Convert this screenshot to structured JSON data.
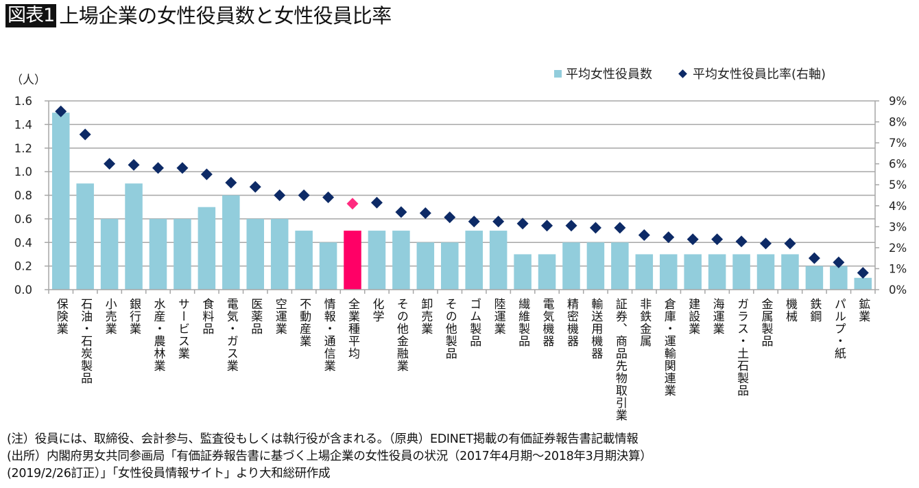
{
  "header": {
    "badge": "図表1",
    "title": "上場企業の女性役員数と女性役員比率"
  },
  "legend": {
    "bar_label": "平均女性役員数",
    "marker_label": "平均女性役員比率(右軸)"
  },
  "colors": {
    "bar": "#92cddc",
    "bar_highlight": "#ff0066",
    "marker": "#0d2a66",
    "marker_highlight": "#ff2a7f",
    "grid": "#a6a6a6"
  },
  "chart_data": {
    "type": "bar",
    "title": "上場企業の女性役員数と女性役員比率",
    "ylabel": "（人）",
    "y2label": "",
    "ylim": [
      0,
      1.6
    ],
    "y_ticks": [
      "0.0",
      "0.2",
      "0.4",
      "0.6",
      "0.8",
      "1.0",
      "1.2",
      "1.4",
      "1.6"
    ],
    "y2lim": [
      0,
      9
    ],
    "y2_ticks": [
      "0%",
      "1%",
      "2%",
      "3%",
      "4%",
      "5%",
      "6%",
      "7%",
      "8%",
      "9%"
    ],
    "grid": true,
    "legend_position": "top-right",
    "highlight_category": "全業種平均",
    "categories": [
      "保険業",
      "石油・石炭製品",
      "小売業",
      "銀行業",
      "水産・農林業",
      "サービス業",
      "食料品",
      "電気・ガス業",
      "医薬品",
      "空運業",
      "不動産業",
      "情報・通信業",
      "全業種平均",
      "化学",
      "その他金融業",
      "卸売業",
      "その他製品",
      "ゴム製品",
      "陸運業",
      "繊維製品",
      "電気機器",
      "精密機器",
      "輸送用機器",
      "証券、商品先物取引業",
      "非鉄金属",
      "倉庫・運輸関連業",
      "建設業",
      "海運業",
      "ガラス・土石製品",
      "金属製品",
      "機械",
      "鉄鋼",
      "パルプ・紙",
      "鉱業"
    ],
    "series": [
      {
        "name": "平均女性役員数",
        "type": "bar",
        "axis": "left",
        "values": [
          1.5,
          0.9,
          0.6,
          0.9,
          0.6,
          0.6,
          0.7,
          0.8,
          0.6,
          0.6,
          0.5,
          0.4,
          0.5,
          0.5,
          0.5,
          0.4,
          0.4,
          0.5,
          0.5,
          0.3,
          0.3,
          0.4,
          0.4,
          0.4,
          0.3,
          0.3,
          0.3,
          0.3,
          0.3,
          0.3,
          0.3,
          0.2,
          0.2,
          0.1
        ]
      },
      {
        "name": "平均女性役員比率(右軸)",
        "type": "scatter",
        "axis": "right",
        "unit": "%",
        "values": [
          8.5,
          7.4,
          6.0,
          5.95,
          5.8,
          5.8,
          5.5,
          5.1,
          4.9,
          4.5,
          4.5,
          4.4,
          4.1,
          4.15,
          3.7,
          3.65,
          3.45,
          3.25,
          3.25,
          3.15,
          3.05,
          3.05,
          2.95,
          2.95,
          2.6,
          2.5,
          2.4,
          2.4,
          2.3,
          2.2,
          2.2,
          1.5,
          1.3,
          0.8
        ]
      }
    ]
  },
  "notes": [
    "(注）役員には、取締役、会計参与、監査役もしくは執行役が含まれる。（原典）EDINET掲載の有価証券報告書記載情報",
    "(出所）内閣府男女共同参画局「有価証券報告書に基づく上場企業の女性役員の状況（2017年4月期～2018年3月期決算）",
    "(2019/2/26訂正）」「女性役員情報サイト」より大和総研作成"
  ]
}
